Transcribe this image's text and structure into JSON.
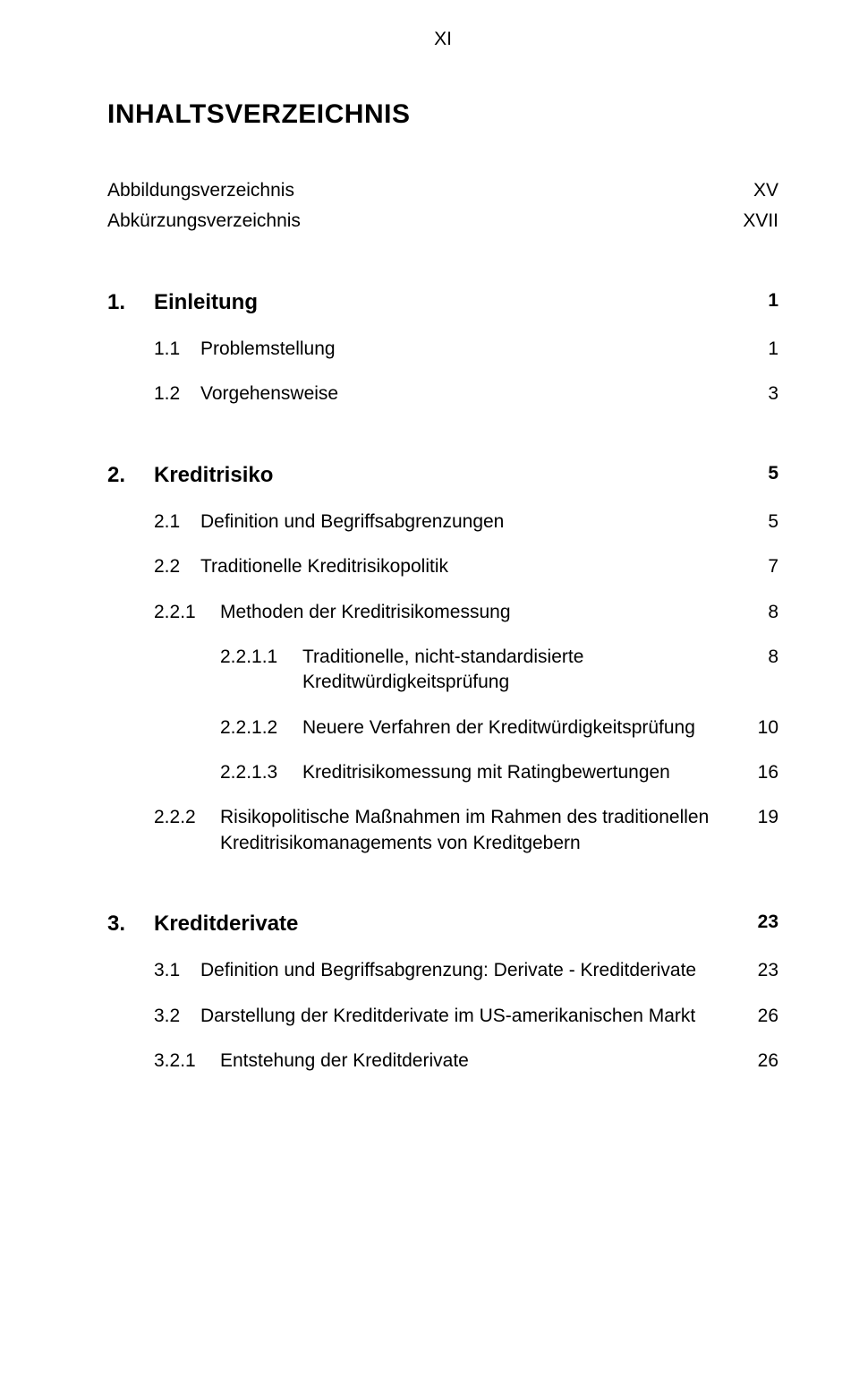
{
  "page_marker": "XI",
  "title": "INHALTSVERZEICHNIS",
  "front": [
    {
      "label": "Abbildungsverzeichnis",
      "page": "XV"
    },
    {
      "label": "Abkürzungsverzeichnis",
      "page": "XVII"
    }
  ],
  "entries": [
    {
      "num": "1.",
      "label": "Einleitung",
      "page": "1",
      "level": 1,
      "bold": true,
      "section_title": true,
      "gap_before": "lg"
    },
    {
      "num": "1.1",
      "label": "Problemstellung",
      "page": "1",
      "level": 2,
      "gap_before": "sm"
    },
    {
      "num": "1.2",
      "label": "Vorgehensweise",
      "page": "3",
      "level": 2,
      "gap_before": "sm"
    },
    {
      "num": "2.",
      "label": "Kreditrisiko",
      "page": "5",
      "level": 1,
      "bold": true,
      "section_title": true,
      "gap_before": "lg"
    },
    {
      "num": "2.1",
      "label": "Definition und Begriffsabgrenzungen",
      "page": "5",
      "level": 2,
      "gap_before": "sm"
    },
    {
      "num": "2.2",
      "label": "Traditionelle Kreditrisikopolitik",
      "page": "7",
      "level": 2,
      "gap_before": "sm"
    },
    {
      "num": "2.2.1",
      "label": "Methoden der Kreditrisikomessung",
      "page": "8",
      "level": 3,
      "gap_before": "sm"
    },
    {
      "num": "2.2.1.1",
      "label": "Traditionelle, nicht-standardisierte Kreditwürdigkeitsprüfung",
      "page": "8",
      "level": 4,
      "gap_before": "sm"
    },
    {
      "num": "2.2.1.2",
      "label": "Neuere Verfahren der Kredit­würdigkeitsprüfung",
      "page": "10",
      "level": 4,
      "gap_before": "sm"
    },
    {
      "num": "2.2.1.3",
      "label": "Kreditrisikomessung mit Rating­bewertungen",
      "page": "16",
      "level": 4,
      "gap_before": "sm"
    },
    {
      "num": "2.2.2",
      "label": "Risikopolitische Maßnahmen im Rahmen des traditionellen Kreditrisikomanagements von Kreditgebern",
      "page": "19",
      "level": 3,
      "gap_before": "sm"
    },
    {
      "num": "3.",
      "label": "Kreditderivate",
      "page": "23",
      "level": 1,
      "bold": true,
      "section_title": true,
      "gap_before": "lg"
    },
    {
      "num": "3.1",
      "label": "Definition und Begriffsabgrenzung: Derivate - Kreditderivate",
      "page": "23",
      "level": 2,
      "gap_before": "sm"
    },
    {
      "num": "3.2",
      "label": "Darstellung der Kreditderivate im US-amerikanischen Markt",
      "page": "26",
      "level": 2,
      "gap_before": "sm"
    },
    {
      "num": "3.2.1",
      "label": "Entstehung der Kreditderivate",
      "page": "26",
      "level": 3,
      "gap_before": "sm"
    }
  ]
}
